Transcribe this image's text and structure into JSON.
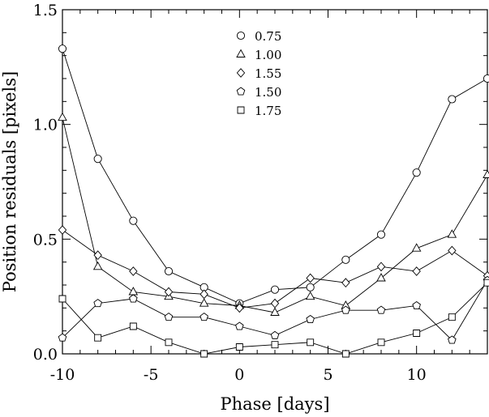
{
  "chart_data": {
    "type": "line",
    "xlabel": "Phase [days]",
    "ylabel": "Position residuals [pixels]",
    "xlim": [
      -10,
      14
    ],
    "ylim": [
      0,
      1.5
    ],
    "xticks": [
      -10,
      -5,
      0,
      5,
      10
    ],
    "xtick_labels": [
      "-10",
      "-5",
      "0",
      "5",
      "10"
    ],
    "yticks": [
      0,
      0.5,
      1.0,
      1.5
    ],
    "ytick_labels": [
      "0.0",
      "0.5",
      "1.0",
      "1.5"
    ],
    "grid": false,
    "legend_position": "top-center",
    "x": [
      -10,
      -8,
      -6,
      -4,
      -2,
      0,
      2,
      4,
      6,
      8,
      10,
      12,
      14
    ],
    "series": [
      {
        "name": "0.75",
        "marker": "circle",
        "values": [
          1.33,
          0.85,
          0.58,
          0.36,
          0.29,
          0.22,
          0.28,
          0.29,
          0.41,
          0.52,
          0.79,
          1.11,
          1.2
        ]
      },
      {
        "name": "1.00",
        "marker": "triangle",
        "values": [
          1.03,
          0.38,
          0.27,
          0.25,
          0.22,
          0.21,
          0.18,
          0.25,
          0.21,
          0.33,
          0.46,
          0.52,
          0.78
        ]
      },
      {
        "name": "1.55",
        "marker": "diamond",
        "values": [
          0.54,
          0.43,
          0.36,
          0.27,
          0.26,
          0.2,
          0.22,
          0.33,
          0.31,
          0.38,
          0.36,
          0.45,
          0.34
        ]
      },
      {
        "name": "1.50",
        "marker": "pentagon",
        "values": [
          0.07,
          0.22,
          0.24,
          0.16,
          0.16,
          0.12,
          0.08,
          0.15,
          0.19,
          0.19,
          0.21,
          0.06,
          0.32
        ]
      },
      {
        "name": "1.75",
        "marker": "square",
        "values": [
          0.24,
          0.07,
          0.12,
          0.05,
          0.0,
          0.03,
          0.04,
          0.05,
          0.0,
          0.05,
          0.09,
          0.16,
          0.31
        ]
      }
    ]
  }
}
